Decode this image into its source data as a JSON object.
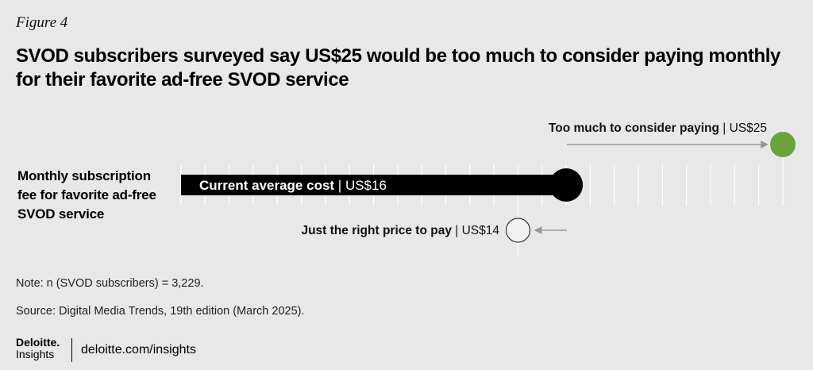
{
  "figure_label": "Figure 4",
  "title": "SVOD subscribers surveyed say US$25 would be too much to consider paying monthly for their favorite ad-free SVOD service",
  "note": "Note: n (SVOD subscribers) = 3,229.",
  "source": "Source: Digital Media Trends, 19th edition (March 2025).",
  "footer": {
    "brand_line1": "Deloitte.",
    "brand_line2": "Insights",
    "url": "deloitte.com/insights"
  },
  "colors": {
    "background": "#e8e8e8",
    "bar": "#000000",
    "too_much": "#6aa33b",
    "just_right": "#f2f2f2",
    "tick": "#ffffff",
    "arrow": "#999999"
  },
  "chart_data": {
    "type": "bar",
    "orientation": "horizontal",
    "categories": [
      "Monthly subscription fee for favorite ad-free SVOD service"
    ],
    "category_label_lines": [
      "Monthly subscription",
      "fee for favorite ad-free",
      "SVOD service"
    ],
    "xlim": [
      0,
      25
    ],
    "tick_step": 1,
    "bar": {
      "label": "Current average cost",
      "value_label": "US$16",
      "value": 16
    },
    "markers": [
      {
        "label": "Too much to consider paying",
        "value_label": "US$25",
        "value": 25,
        "color": "#6aa33b",
        "placement": "above"
      },
      {
        "label": "Just the right price to pay",
        "value_label": "US$14",
        "value": 14,
        "color": "#f2f2f2",
        "placement": "below"
      }
    ]
  }
}
